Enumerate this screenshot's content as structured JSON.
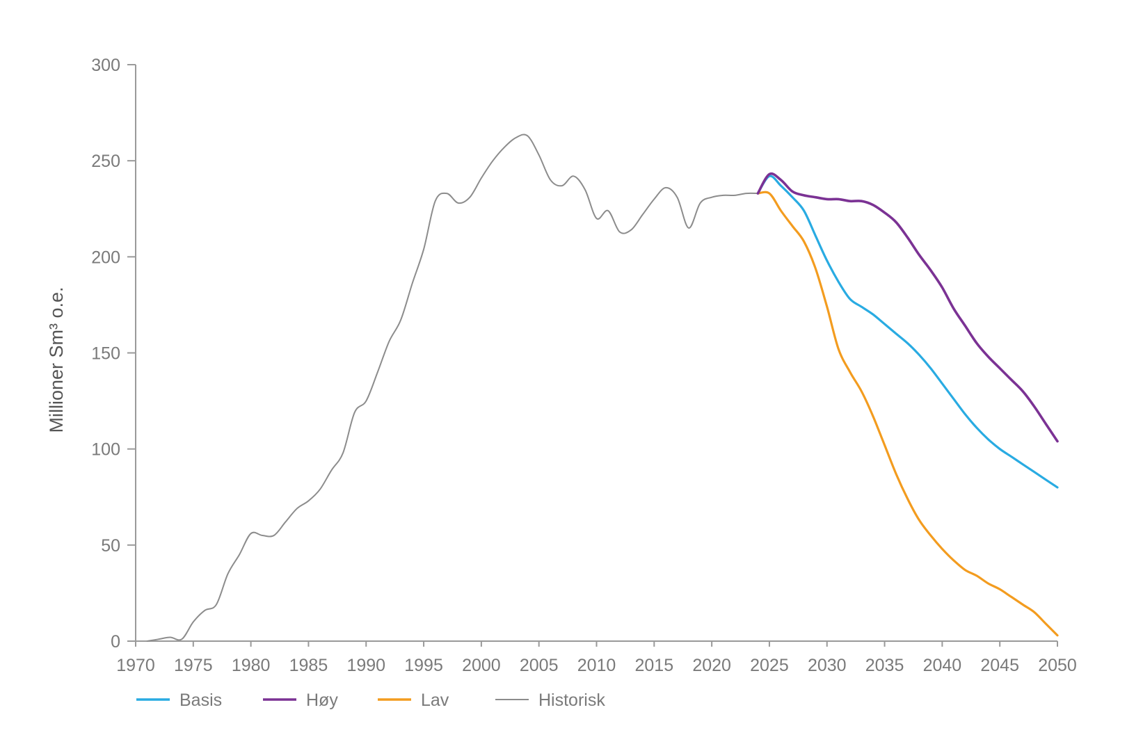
{
  "chart_data": {
    "type": "line",
    "title": "",
    "xlabel": "",
    "ylabel": "Millioner Sm³ o.e.",
    "xlim": [
      1970,
      2050
    ],
    "ylim": [
      0,
      300
    ],
    "x_ticks": [
      1970,
      1975,
      1980,
      1985,
      1990,
      1995,
      2000,
      2005,
      2010,
      2015,
      2020,
      2025,
      2030,
      2035,
      2040,
      2045,
      2050
    ],
    "y_ticks": [
      0,
      50,
      100,
      150,
      200,
      250,
      300
    ],
    "grid": false,
    "legend_position": "bottom-left",
    "series": [
      {
        "name": "Basis",
        "color": "#29abe2",
        "x": [
          2024,
          2025,
          2026,
          2027,
          2028,
          2029,
          2030,
          2031,
          2032,
          2033,
          2034,
          2035,
          2036,
          2037,
          2038,
          2039,
          2040,
          2041,
          2042,
          2043,
          2044,
          2045,
          2046,
          2047,
          2048,
          2049,
          2050
        ],
        "y": [
          233,
          242,
          237,
          231,
          224,
          211,
          198,
          187,
          178,
          174,
          170,
          165,
          160,
          155,
          149,
          142,
          134,
          126,
          118,
          111,
          105,
          100,
          96,
          92,
          88,
          84,
          80
        ]
      },
      {
        "name": "Høy",
        "color": "#7b3294",
        "x": [
          2024,
          2025,
          2026,
          2027,
          2028,
          2029,
          2030,
          2031,
          2032,
          2033,
          2034,
          2035,
          2036,
          2037,
          2038,
          2039,
          2040,
          2041,
          2042,
          2043,
          2044,
          2045,
          2046,
          2047,
          2048,
          2049,
          2050
        ],
        "y": [
          233,
          243,
          240,
          234,
          232,
          231,
          230,
          230,
          229,
          229,
          227,
          223,
          218,
          210,
          201,
          193,
          184,
          173,
          164,
          155,
          148,
          142,
          136,
          130,
          122,
          113,
          104
        ]
      },
      {
        "name": "Lav",
        "color": "#f39c1f",
        "x": [
          2024,
          2025,
          2026,
          2027,
          2028,
          2029,
          2030,
          2031,
          2032,
          2033,
          2034,
          2035,
          2036,
          2037,
          2038,
          2039,
          2040,
          2041,
          2042,
          2043,
          2044,
          2045,
          2046,
          2047,
          2048,
          2049,
          2050
        ],
        "y": [
          233,
          233,
          224,
          216,
          208,
          194,
          174,
          152,
          140,
          130,
          117,
          102,
          87,
          74,
          63,
          55,
          48,
          42,
          37,
          34,
          30,
          27,
          23,
          19,
          15,
          9,
          3
        ]
      },
      {
        "name": "Historisk",
        "color": "#8c8c8c",
        "x": [
          1971,
          1972,
          1973,
          1974,
          1975,
          1976,
          1977,
          1978,
          1979,
          1980,
          1981,
          1982,
          1983,
          1984,
          1985,
          1986,
          1987,
          1988,
          1989,
          1990,
          1991,
          1992,
          1993,
          1994,
          1995,
          1996,
          1997,
          1998,
          1999,
          2000,
          2001,
          2002,
          2003,
          2004,
          2005,
          2006,
          2007,
          2008,
          2009,
          2010,
          2011,
          2012,
          2013,
          2014,
          2015,
          2016,
          2017,
          2018,
          2019,
          2020,
          2021,
          2022,
          2023,
          2024
        ],
        "y": [
          0,
          1,
          2,
          1,
          10,
          16,
          19,
          35,
          45,
          56,
          55,
          55,
          62,
          69,
          73,
          79,
          89,
          98,
          119,
          125,
          140,
          156,
          167,
          186,
          204,
          229,
          233,
          228,
          231,
          241,
          250,
          257,
          262,
          263,
          253,
          240,
          237,
          242,
          235,
          220,
          224,
          213,
          214,
          222,
          230,
          236,
          231,
          215,
          228,
          231,
          232,
          232,
          233,
          233
        ]
      }
    ]
  }
}
